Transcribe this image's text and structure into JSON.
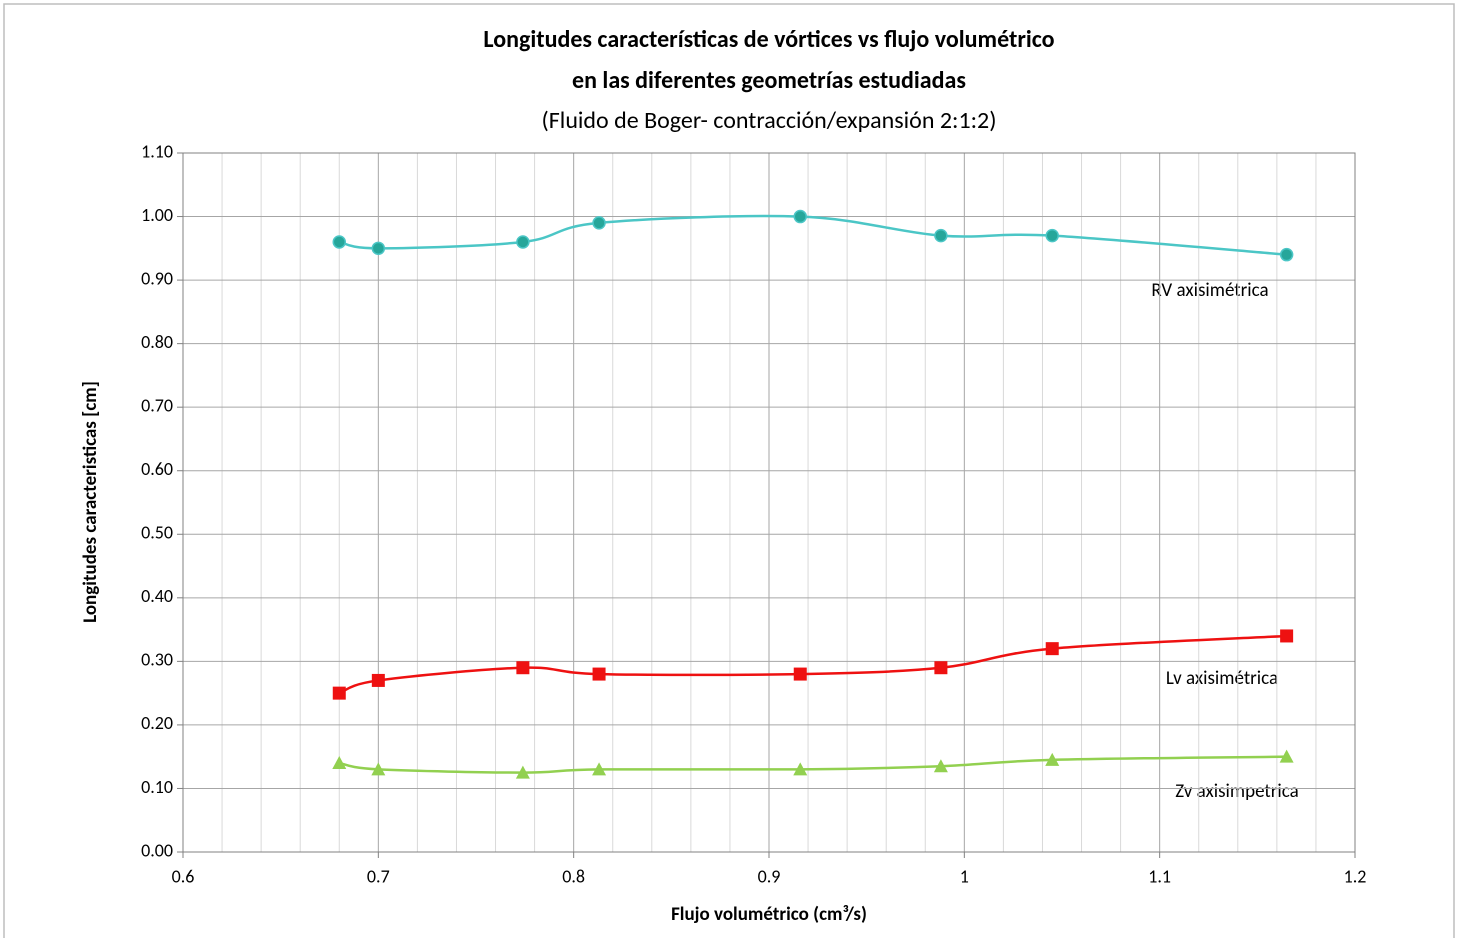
{
  "chart_data": {
    "type": "line",
    "title": "Longitudes características de vórtices vs flujo volumétrico",
    "title_line2": "en las diferentes geometrías estudiadas",
    "subtitle": "(Fluido de Boger- contracción/expansión 2:1:2)",
    "x_label": "Flujo volumétrico (cm³/s)",
    "y_label": "Longitudes caracteristicas [cm]",
    "x": [
      0.68,
      0.7,
      0.774,
      0.813,
      0.916,
      0.988,
      1.045,
      1.165
    ],
    "series": [
      {
        "name": "RV axisimétrica",
        "color": "#4bc6c6",
        "marker_color": "#26a69a",
        "marker": "circle",
        "values": [
          0.96,
          0.95,
          0.96,
          0.99,
          1.0,
          0.97,
          0.97,
          0.94
        ]
      },
      {
        "name": "Lv axisimétrica",
        "color": "#ee1111",
        "marker_color": "#ee1111",
        "marker": "square",
        "values": [
          0.25,
          0.27,
          0.29,
          0.28,
          0.28,
          0.29,
          0.32,
          0.34
        ]
      },
      {
        "name": "Zv axisimpetrica",
        "color": "#92d050",
        "marker_color": "#92d050",
        "marker": "triangle",
        "values": [
          0.14,
          0.13,
          0.125,
          0.13,
          0.13,
          0.135,
          0.145,
          0.15
        ]
      }
    ],
    "xlim": [
      0.6,
      1.2
    ],
    "xticks": [
      0.6,
      0.7,
      0.8,
      0.9,
      1,
      1.1,
      1.2
    ],
    "ylim": [
      0,
      1.1
    ],
    "yticks": [
      {
        "value": 0,
        "label": "0.00"
      },
      {
        "value": 0.1,
        "label": "0.10"
      },
      {
        "value": 0.2,
        "label": "0.20"
      },
      {
        "value": 0.3,
        "label": "0.30"
      },
      {
        "value": 0.4,
        "label": "0.40"
      },
      {
        "value": 0.5,
        "label": "0.50"
      },
      {
        "value": 0.6,
        "label": "0.60"
      },
      {
        "value": 0.7,
        "label": "0.70"
      },
      {
        "value": 0.8,
        "label": "0.80"
      },
      {
        "value": 0.9,
        "label": "0.90"
      },
      {
        "value": 1.0,
        "label": "1.00"
      },
      {
        "value": 1.1,
        "label": "1.10"
      }
    ],
    "grid": true,
    "x_minor_divisions": 5,
    "smooth": true
  }
}
